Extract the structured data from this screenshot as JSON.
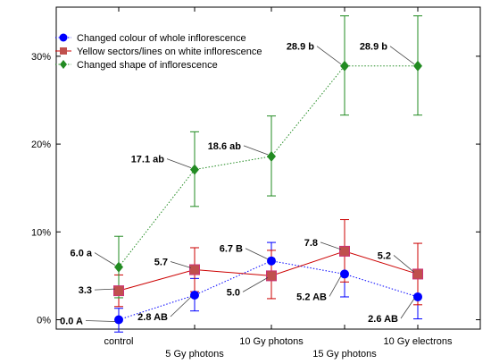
{
  "chart_data": {
    "type": "line",
    "categories": [
      "control",
      "5 Gy photons",
      "10 Gy photons",
      "15 Gy photons",
      "10 Gy electrons"
    ],
    "y_ticks": [
      "0%",
      "10%",
      "20%",
      "30%"
    ],
    "ylim": [
      -1,
      35
    ],
    "grid": false,
    "legend_position": "top-left",
    "series": [
      {
        "name": "Changed colour of whole inflorescence",
        "color": "#0000ff",
        "line_style": "dotted",
        "marker": "circle",
        "values": [
          0.0,
          2.8,
          6.7,
          5.2,
          2.6
        ],
        "err_low": [
          -1.4,
          1.0,
          4.6,
          2.6,
          0.1
        ],
        "err_high": [
          1.3,
          4.7,
          8.8,
          7.8,
          5.2
        ],
        "labels": [
          "0.0 A",
          "2.8 AB",
          "6.7 B",
          "5.2 AB",
          "2.6 AB"
        ]
      },
      {
        "name": "Yellow sectors/lines on white inflorescence",
        "color": "#cc0000",
        "line_style": "solid",
        "marker": "square",
        "values": [
          3.3,
          5.7,
          5.0,
          7.8,
          5.2
        ],
        "err_low": [
          1.5,
          3.2,
          2.4,
          4.3,
          1.7
        ],
        "err_high": [
          5.1,
          8.2,
          7.9,
          11.4,
          8.7
        ],
        "labels": [
          "3.3",
          "5.7",
          "5.0",
          "7.8",
          "5.2"
        ]
      },
      {
        "name": "Changed shape of inflorescence",
        "color": "#228b22",
        "line_style": "dotted",
        "marker": "diamond",
        "values": [
          6.0,
          17.1,
          18.6,
          28.9,
          28.9
        ],
        "err_low": [
          2.5,
          12.9,
          14.1,
          23.3,
          23.3
        ],
        "err_high": [
          9.5,
          21.4,
          23.2,
          34.6,
          34.6
        ],
        "labels": [
          "6.0 a",
          "17.1 ab",
          "18.6 ab",
          "28.9 b",
          "28.9 b"
        ]
      }
    ]
  }
}
